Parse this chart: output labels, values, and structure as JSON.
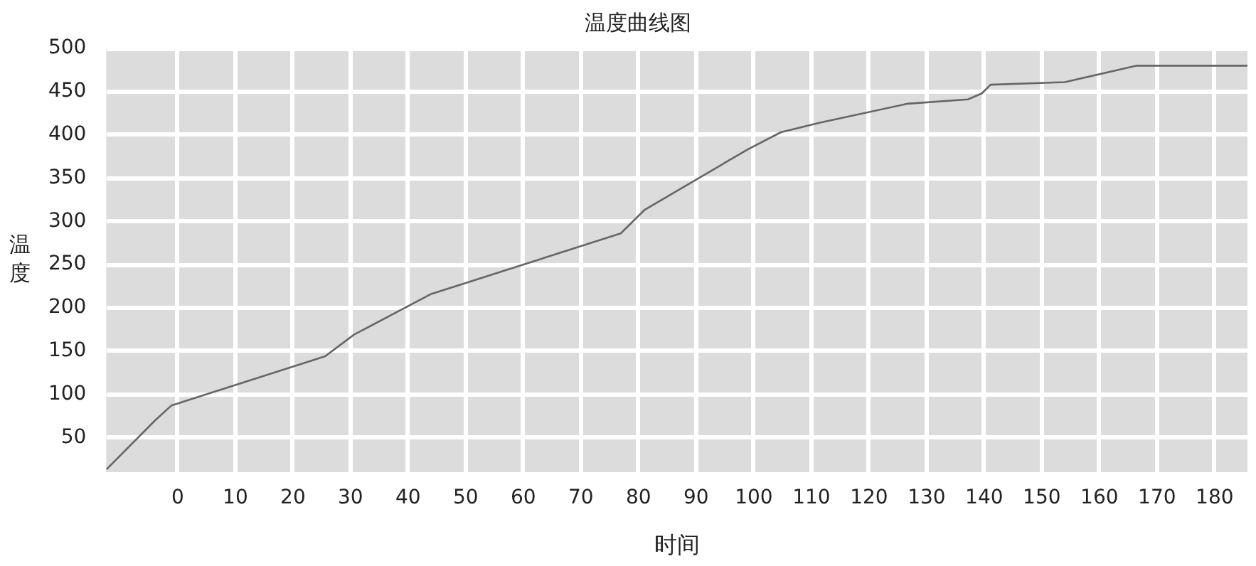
{
  "chart_data": {
    "type": "line",
    "title": "温度曲线图",
    "xlabel": "时间",
    "ylabel": "温度",
    "series": [
      {
        "color": "#666666",
        "x": [
          -12.4,
          -3.9,
          -1.1,
          25.6,
          30.6,
          44,
          76.9,
          81,
          98.9,
          104.7,
          111.5,
          126.7,
          137.2,
          139.6,
          141.1,
          154,
          166.5,
          185.7
        ],
        "values": [
          13,
          70,
          87,
          144,
          169,
          216,
          286,
          313,
          383,
          403,
          414,
          436,
          441,
          448,
          458,
          461,
          480,
          480
        ]
      }
    ],
    "xlim": [
      -12.4,
      185.7
    ],
    "xticks": [
      0,
      10,
      20,
      30,
      40,
      50,
      60,
      70,
      80,
      90,
      100,
      110,
      120,
      130,
      140,
      150,
      160,
      170,
      180
    ],
    "ylim": [
      10,
      500
    ],
    "yticks": [
      50,
      100,
      150,
      200,
      250,
      300,
      350,
      400,
      450,
      500
    ],
    "grid": true,
    "legend": false,
    "marker": "none",
    "line_style": "solid"
  }
}
